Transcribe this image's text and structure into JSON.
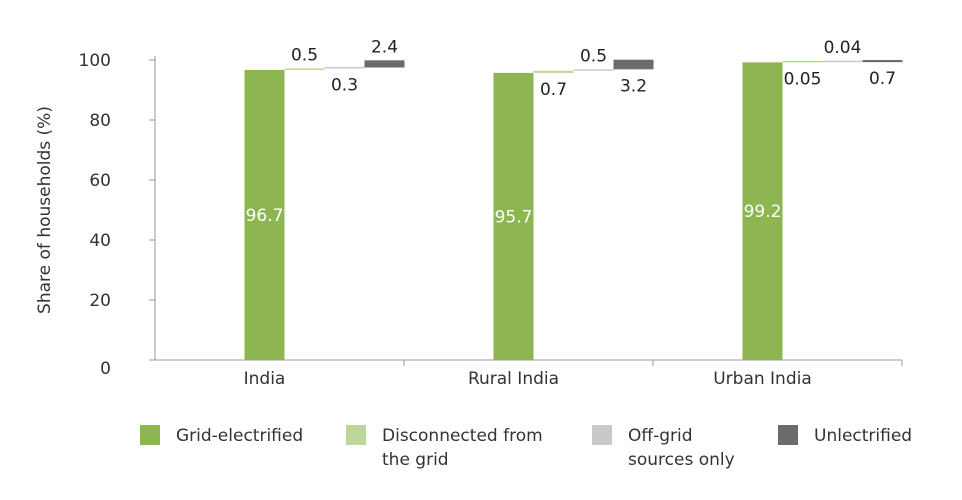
{
  "chart_data": {
    "type": "bar",
    "categories": [
      "India",
      "Rural India",
      "Urban India"
    ],
    "series": [
      {
        "name": "Grid-electrified",
        "values": [
          96.7,
          95.7,
          99.2
        ],
        "color": "#8db552"
      },
      {
        "name": "Disconnected from\nthe grid",
        "values": [
          0.5,
          0.7,
          0.05
        ],
        "color": "#bdd79a"
      },
      {
        "name": "Off-grid\nsources only",
        "values": [
          0.3,
          0.5,
          0.04
        ],
        "color": "#c9c9c9"
      },
      {
        "name": "Unlectrified",
        "values": [
          2.4,
          3.2,
          0.7
        ],
        "color": "#6b6b6e"
      }
    ],
    "data_labels": [
      [
        "96.7",
        "0.5",
        "0.3",
        "2.4"
      ],
      [
        "95.7",
        "0.7",
        "0.5",
        "3.2"
      ],
      [
        "99.2",
        "0.05",
        "0.04",
        "0.7"
      ]
    ],
    "ylabel": "Share of households (%)",
    "xlabel": "",
    "ylim": [
      0,
      100
    ],
    "yticks": [
      "0",
      "20",
      "40",
      "60",
      "80",
      "100"
    ],
    "grid": false,
    "legend_position": "bottom"
  }
}
